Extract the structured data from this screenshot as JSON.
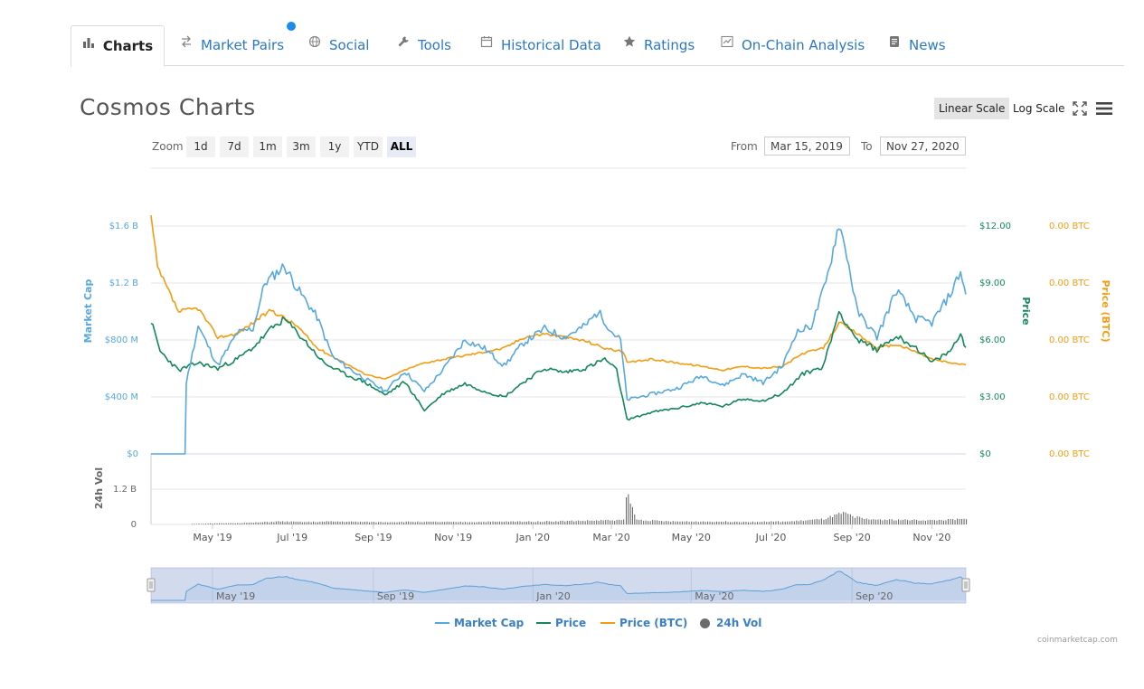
{
  "tabs": [
    {
      "label": "Charts",
      "icon": "bar-chart-icon",
      "active": true
    },
    {
      "label": "Market Pairs",
      "icon": "swap-arrows-icon"
    },
    {
      "label": "Social",
      "icon": "globe-icon"
    },
    {
      "label": "Tools",
      "icon": "wrench-icon"
    },
    {
      "label": "Historical Data",
      "icon": "calendar-icon"
    },
    {
      "label": "Ratings",
      "icon": "star-icon"
    },
    {
      "label": "On-Chain Analysis",
      "icon": "line-chart-icon"
    },
    {
      "label": "News",
      "icon": "document-icon"
    }
  ],
  "header": {
    "title": "Cosmos Charts",
    "linear_scale": "Linear Scale",
    "log_scale": "Log Scale"
  },
  "range": {
    "zoom_label": "Zoom",
    "buttons": [
      "1d",
      "7d",
      "1m",
      "3m",
      "1y",
      "YTD",
      "ALL"
    ],
    "selected": "ALL",
    "from_label": "From",
    "from_value": "Mar 15, 2019",
    "to_label": "To",
    "to_value": "Nov 27, 2020"
  },
  "legend": [
    {
      "label": "Market Cap",
      "color": "#56a8e0"
    },
    {
      "label": "Price",
      "color": "#14875a"
    },
    {
      "label": "Price (BTC)",
      "color": "#f39c12"
    },
    {
      "label": "24h Vol",
      "color": "#6b6b6b"
    }
  ],
  "credit": "coinmarketcap.com",
  "chart_data": {
    "type": "line",
    "title": "Cosmos Charts",
    "x_range": [
      "2019-03-15",
      "2020-11-27"
    ],
    "x_ticks": [
      "May '19",
      "Jul '19",
      "Sep '19",
      "Nov '19",
      "Jan '20",
      "Mar '20",
      "May '20",
      "Jul '20",
      "Sep '20",
      "Nov '20"
    ],
    "navigator_ticks": [
      "May '19",
      "Sep '19",
      "Jan '20",
      "May '20",
      "Sep '20"
    ],
    "axes": {
      "market_cap": {
        "label": "Market Cap",
        "ticks": [
          "$0",
          "$400 M",
          "$800 M",
          "$1.2 B",
          "$1.6 B"
        ],
        "range": [
          0,
          1.6
        ]
      },
      "price": {
        "label": "Price",
        "ticks": [
          "$0",
          "$3.00",
          "$6.00",
          "$9.00",
          "$12.00"
        ],
        "range": [
          0,
          12
        ]
      },
      "price_btc": {
        "label": "Price (BTC)",
        "ticks": [
          "0.00 BTC",
          "0.00 BTC",
          "0.00 BTC",
          "0.00 BTC",
          "0.00 BTC"
        ]
      },
      "volume": {
        "label": "24h Vol",
        "ticks": [
          "0",
          "1.2 B"
        ]
      }
    },
    "grid": true,
    "legend_position": "bottom",
    "series": [
      {
        "name": "Market Cap",
        "unit": "B USD",
        "color": "#56a8e0",
        "points": [
          [
            "2019-03-15",
            0
          ],
          [
            "2019-04-10",
            0
          ],
          [
            "2019-04-11",
            0.5
          ],
          [
            "2019-04-20",
            0.9
          ],
          [
            "2019-05-05",
            0.62
          ],
          [
            "2019-05-20",
            0.85
          ],
          [
            "2019-06-01",
            0.88
          ],
          [
            "2019-06-10",
            1.2
          ],
          [
            "2019-06-25",
            1.32
          ],
          [
            "2019-07-05",
            1.16
          ],
          [
            "2019-07-20",
            0.96
          ],
          [
            "2019-08-01",
            0.68
          ],
          [
            "2019-08-20",
            0.56
          ],
          [
            "2019-09-10",
            0.44
          ],
          [
            "2019-09-25",
            0.58
          ],
          [
            "2019-10-10",
            0.44
          ],
          [
            "2019-10-25",
            0.6
          ],
          [
            "2019-11-10",
            0.8
          ],
          [
            "2019-11-25",
            0.74
          ],
          [
            "2019-12-10",
            0.62
          ],
          [
            "2019-12-25",
            0.78
          ],
          [
            "2020-01-10",
            0.88
          ],
          [
            "2020-01-25",
            0.82
          ],
          [
            "2020-02-10",
            0.9
          ],
          [
            "2020-02-20",
            1.0
          ],
          [
            "2020-03-01",
            0.86
          ],
          [
            "2020-03-08",
            0.8
          ],
          [
            "2020-03-13",
            0.38
          ],
          [
            "2020-04-01",
            0.42
          ],
          [
            "2020-04-20",
            0.46
          ],
          [
            "2020-05-10",
            0.55
          ],
          [
            "2020-05-25",
            0.48
          ],
          [
            "2020-06-10",
            0.56
          ],
          [
            "2020-06-25",
            0.5
          ],
          [
            "2020-07-10",
            0.62
          ],
          [
            "2020-07-20",
            0.85
          ],
          [
            "2020-08-01",
            0.9
          ],
          [
            "2020-08-12",
            1.2
          ],
          [
            "2020-08-22",
            1.62
          ],
          [
            "2020-08-28",
            1.4
          ],
          [
            "2020-09-05",
            1.0
          ],
          [
            "2020-09-20",
            0.82
          ],
          [
            "2020-10-05",
            1.15
          ],
          [
            "2020-10-20",
            0.95
          ],
          [
            "2020-11-01",
            0.92
          ],
          [
            "2020-11-15",
            1.12
          ],
          [
            "2020-11-23",
            1.28
          ],
          [
            "2020-11-27",
            1.12
          ]
        ]
      },
      {
        "name": "Price",
        "unit": "USD",
        "color": "#14875a",
        "points": [
          [
            "2019-03-15",
            7.0
          ],
          [
            "2019-03-22",
            5.4
          ],
          [
            "2019-04-05",
            4.4
          ],
          [
            "2019-04-20",
            4.8
          ],
          [
            "2019-05-05",
            4.5
          ],
          [
            "2019-05-20",
            5.0
          ],
          [
            "2019-06-01",
            5.6
          ],
          [
            "2019-06-15",
            6.6
          ],
          [
            "2019-06-25",
            7.1
          ],
          [
            "2019-07-10",
            6.0
          ],
          [
            "2019-07-25",
            4.8
          ],
          [
            "2019-08-10",
            4.2
          ],
          [
            "2019-08-25",
            3.8
          ],
          [
            "2019-09-10",
            3.1
          ],
          [
            "2019-09-25",
            3.8
          ],
          [
            "2019-10-10",
            2.3
          ],
          [
            "2019-10-25",
            3.2
          ],
          [
            "2019-11-10",
            3.7
          ],
          [
            "2019-11-25",
            3.3
          ],
          [
            "2019-12-10",
            3.0
          ],
          [
            "2019-12-25",
            3.8
          ],
          [
            "2020-01-10",
            4.5
          ],
          [
            "2020-01-25",
            4.3
          ],
          [
            "2020-02-10",
            4.5
          ],
          [
            "2020-02-25",
            5.0
          ],
          [
            "2020-03-05",
            4.4
          ],
          [
            "2020-03-13",
            1.8
          ],
          [
            "2020-04-01",
            2.2
          ],
          [
            "2020-04-20",
            2.4
          ],
          [
            "2020-05-10",
            2.7
          ],
          [
            "2020-05-25",
            2.5
          ],
          [
            "2020-06-10",
            2.9
          ],
          [
            "2020-06-25",
            2.8
          ],
          [
            "2020-07-10",
            3.2
          ],
          [
            "2020-07-25",
            4.2
          ],
          [
            "2020-08-10",
            4.6
          ],
          [
            "2020-08-22",
            7.5
          ],
          [
            "2020-09-05",
            6.0
          ],
          [
            "2020-09-20",
            5.5
          ],
          [
            "2020-10-05",
            6.2
          ],
          [
            "2020-10-20",
            5.6
          ],
          [
            "2020-11-01",
            4.8
          ],
          [
            "2020-11-15",
            5.4
          ],
          [
            "2020-11-23",
            6.3
          ],
          [
            "2020-11-27",
            5.6
          ]
        ]
      },
      {
        "name": "Price (BTC)",
        "unit": "BTC",
        "color": "#f39c12",
        "points": [
          [
            "2019-03-15",
            1.0
          ],
          [
            "2019-03-20",
            0.72
          ],
          [
            "2019-04-05",
            0.48
          ],
          [
            "2019-04-20",
            0.5
          ],
          [
            "2019-05-05",
            0.34
          ],
          [
            "2019-05-20",
            0.36
          ],
          [
            "2019-06-01",
            0.42
          ],
          [
            "2019-06-15",
            0.49
          ],
          [
            "2019-07-05",
            0.4
          ],
          [
            "2019-07-20",
            0.28
          ],
          [
            "2019-08-10",
            0.2
          ],
          [
            "2019-08-25",
            0.14
          ],
          [
            "2019-09-10",
            0.11
          ],
          [
            "2019-09-25",
            0.16
          ],
          [
            "2019-10-10",
            0.2
          ],
          [
            "2019-10-25",
            0.22
          ],
          [
            "2019-11-10",
            0.24
          ],
          [
            "2019-11-25",
            0.26
          ],
          [
            "2019-12-10",
            0.28
          ],
          [
            "2019-12-25",
            0.34
          ],
          [
            "2020-01-10",
            0.36
          ],
          [
            "2020-01-25",
            0.34
          ],
          [
            "2020-02-10",
            0.32
          ],
          [
            "2020-02-25",
            0.28
          ],
          [
            "2020-03-10",
            0.26
          ],
          [
            "2020-03-13",
            0.2
          ],
          [
            "2020-04-01",
            0.22
          ],
          [
            "2020-04-20",
            0.2
          ],
          [
            "2020-05-10",
            0.18
          ],
          [
            "2020-05-25",
            0.16
          ],
          [
            "2020-06-10",
            0.18
          ],
          [
            "2020-06-25",
            0.17
          ],
          [
            "2020-07-10",
            0.18
          ],
          [
            "2020-07-25",
            0.25
          ],
          [
            "2020-08-10",
            0.28
          ],
          [
            "2020-08-22",
            0.42
          ],
          [
            "2020-09-05",
            0.36
          ],
          [
            "2020-09-20",
            0.28
          ],
          [
            "2020-10-05",
            0.3
          ],
          [
            "2020-10-20",
            0.26
          ],
          [
            "2020-11-01",
            0.22
          ],
          [
            "2020-11-15",
            0.2
          ],
          [
            "2020-11-27",
            0.19
          ]
        ]
      },
      {
        "name": "24h Vol",
        "unit": "B USD",
        "color": "#6b6b6b",
        "points": [
          [
            "2019-04-15",
            0.02
          ],
          [
            "2019-06-01",
            0.06
          ],
          [
            "2019-06-20",
            0.1
          ],
          [
            "2019-07-10",
            0.08
          ],
          [
            "2019-08-01",
            0.1
          ],
          [
            "2019-09-01",
            0.08
          ],
          [
            "2019-10-01",
            0.09
          ],
          [
            "2019-11-01",
            0.08
          ],
          [
            "2019-12-01",
            0.09
          ],
          [
            "2020-01-01",
            0.1
          ],
          [
            "2020-02-01",
            0.12
          ],
          [
            "2020-03-10",
            0.15
          ],
          [
            "2020-03-12",
            1.1
          ],
          [
            "2020-03-20",
            0.16
          ],
          [
            "2020-04-15",
            0.1
          ],
          [
            "2020-05-15",
            0.1
          ],
          [
            "2020-06-15",
            0.09
          ],
          [
            "2020-07-15",
            0.1
          ],
          [
            "2020-08-10",
            0.18
          ],
          [
            "2020-08-20",
            0.32
          ],
          [
            "2020-08-25",
            0.38
          ],
          [
            "2020-09-10",
            0.18
          ],
          [
            "2020-10-01",
            0.16
          ],
          [
            "2020-11-01",
            0.14
          ],
          [
            "2020-11-27",
            0.18
          ]
        ]
      }
    ]
  }
}
